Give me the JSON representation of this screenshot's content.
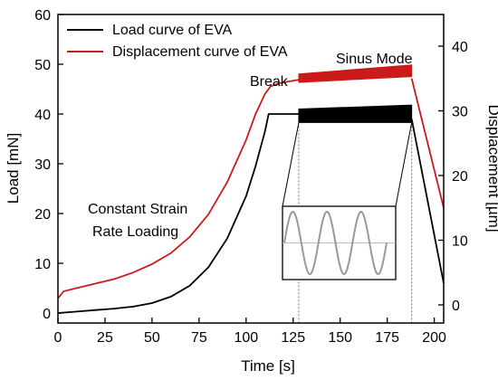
{
  "chart_data": {
    "type": "line",
    "xlabel": "Time [s]",
    "ylabel": "Load [mN]",
    "y2label": "Displacement [µm]",
    "xlim": [
      0,
      205
    ],
    "ylim": [
      -2,
      60
    ],
    "y2lim": [
      -2.8,
      44.9
    ],
    "xticks": [
      0,
      25,
      50,
      75,
      100,
      125,
      150,
      175,
      200
    ],
    "yticks": [
      0,
      10,
      20,
      30,
      40,
      50,
      60
    ],
    "y2ticks": [
      0,
      10,
      20,
      30,
      40
    ],
    "grid": false,
    "legend_position": "top-left",
    "series": [
      {
        "name": "Load curve of EVA",
        "axis": "left",
        "color": "#000000",
        "x": [
          0,
          10,
          20,
          30,
          40,
          50,
          60,
          70,
          80,
          90,
          100,
          105,
          110,
          112,
          128
        ],
        "values": [
          0,
          0.3,
          0.6,
          0.9,
          1.3,
          2.0,
          3.3,
          5.5,
          9.2,
          15.0,
          23.5,
          29.5,
          36.5,
          40,
          40
        ],
        "sinus_band": {
          "x": [
            128,
            188
          ],
          "low": [
            38.3,
            38.3
          ],
          "high": [
            41.0,
            41.8
          ]
        },
        "unload": {
          "x": [
            188,
            205
          ],
          "values": [
            39,
            6
          ]
        }
      },
      {
        "name": "Displacement curve of EVA",
        "axis": "right",
        "color": "#cc1a1a",
        "x": [
          0,
          3,
          10,
          20,
          30,
          40,
          50,
          60,
          70,
          80,
          90,
          100,
          105,
          110,
          113,
          118,
          122,
          128
        ],
        "values": [
          1.0,
          2.1,
          2.6,
          3.3,
          4.0,
          5.0,
          6.3,
          8.0,
          10.5,
          14.0,
          19.0,
          25.5,
          29.5,
          32.6,
          33.8,
          34.3,
          34.5,
          34.8
        ],
        "sinus_band": {
          "x": [
            128,
            188
          ],
          "low": [
            34.4,
            35.3
          ],
          "high": [
            35.7,
            37.1
          ]
        },
        "unload": {
          "x": [
            188,
            205
          ],
          "values": [
            35,
            15.0
          ]
        }
      }
    ],
    "annotations": [
      "Break",
      "Sinus Mode",
      "Constant Strain",
      "Rate Loading"
    ],
    "inset": {
      "type": "sine",
      "cycles": 3,
      "connected_x": [
        128,
        188
      ]
    }
  },
  "labels": {
    "break": "Break",
    "sinus_mode": "Sinus Mode",
    "constant_strain": "Constant Strain",
    "rate_loading": "Rate Loading"
  }
}
